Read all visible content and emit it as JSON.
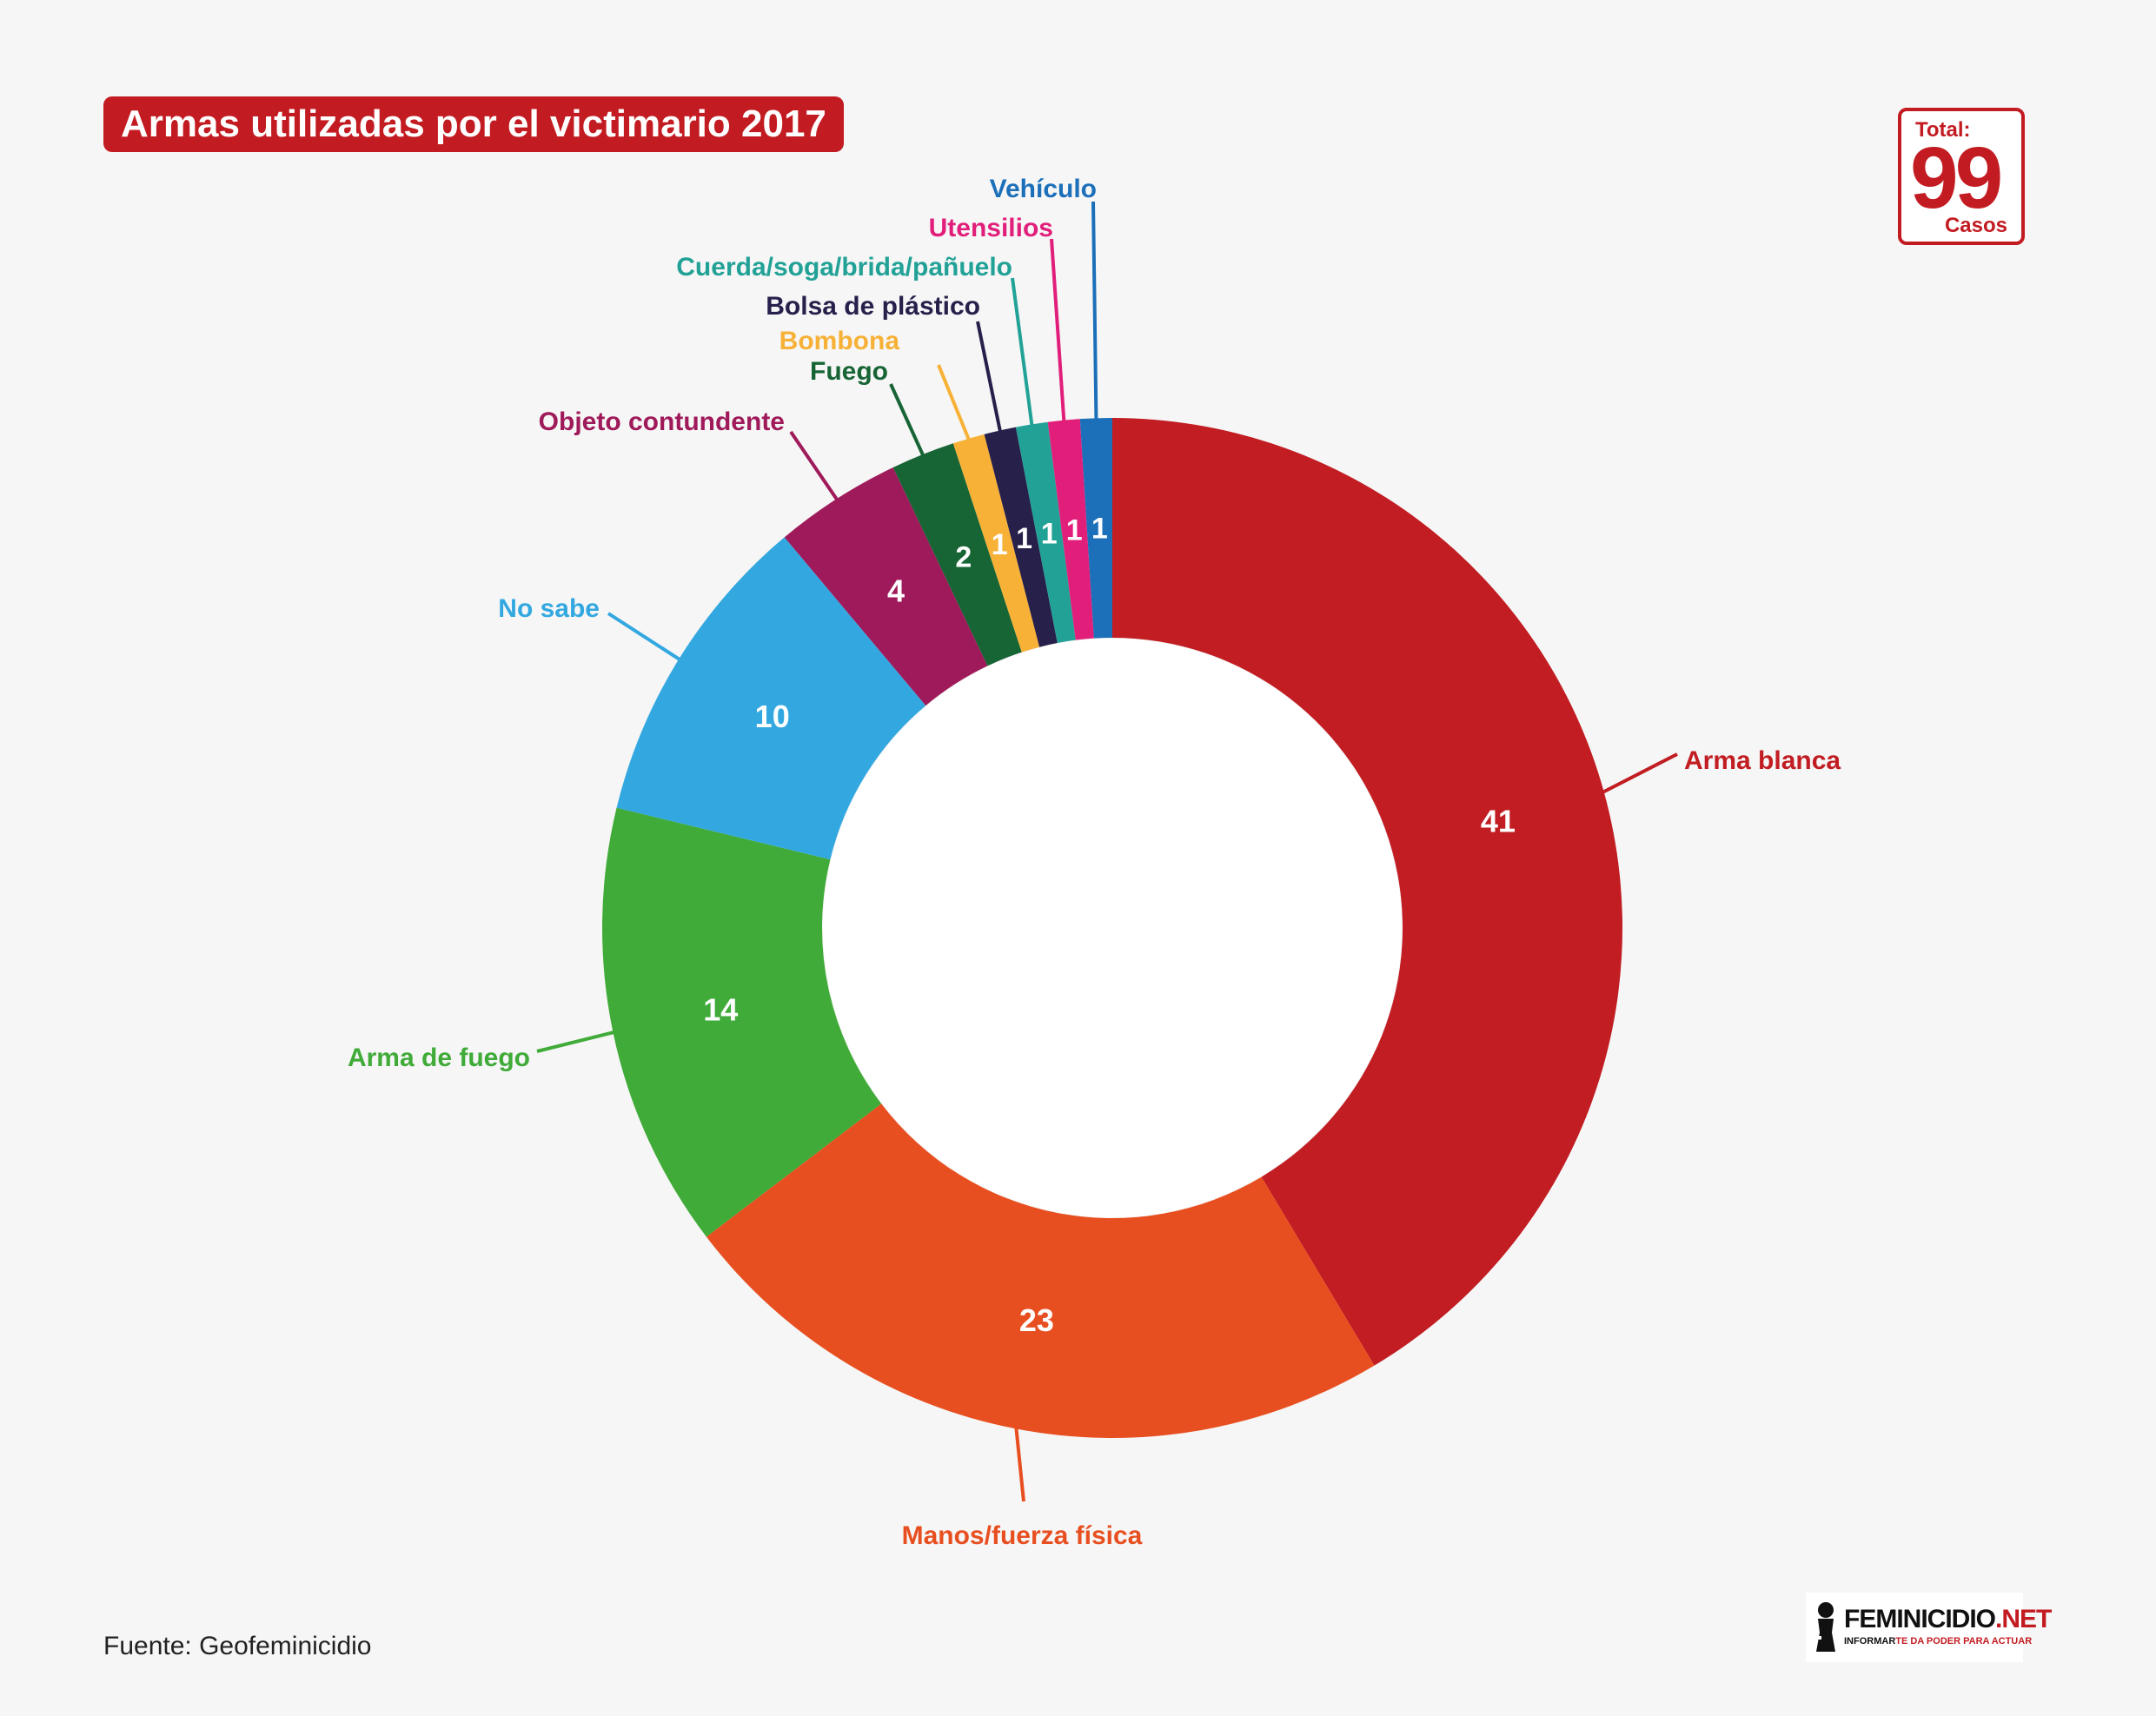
{
  "title": "Armas utilizadas por el victimario 2017",
  "total": {
    "label": "Total:",
    "value": "99",
    "unit": "Casos"
  },
  "source": "Fuente: Geofeminicidio",
  "logo": {
    "name": "FEMINICIDIO",
    "suffix": ".NET",
    "tagline_a": "INFORMAR",
    "tagline_b": "TE DA PODER PARA ACTUAR"
  },
  "chart_data": {
    "type": "pie",
    "variant": "donut",
    "total": 99,
    "slices": [
      {
        "label": "Arma blanca",
        "value": 41,
        "color": "#c11d22"
      },
      {
        "label": "Manos/fuerza física",
        "value": 23,
        "color": "#e84f20"
      },
      {
        "label": "Arma de fuego",
        "value": 14,
        "color": "#40ab38"
      },
      {
        "label": "No sabe",
        "value": 10,
        "color": "#33a8e0"
      },
      {
        "label": "Objeto contundente",
        "value": 4,
        "color": "#9f1a5a"
      },
      {
        "label": "Fuego",
        "value": 2,
        "color": "#176435"
      },
      {
        "label": "Bombona",
        "value": 1,
        "color": "#f7b137"
      },
      {
        "label": "Bolsa de plástico",
        "value": 1,
        "color": "#27204b"
      },
      {
        "label": "Cuerda/soga/brida/pañuelo",
        "value": 1,
        "color": "#22a297"
      },
      {
        "label": "Utensilios",
        "value": 1,
        "color": "#e11f7b"
      },
      {
        "label": "Vehículo",
        "value": 1,
        "color": "#1c6fb9"
      }
    ]
  }
}
